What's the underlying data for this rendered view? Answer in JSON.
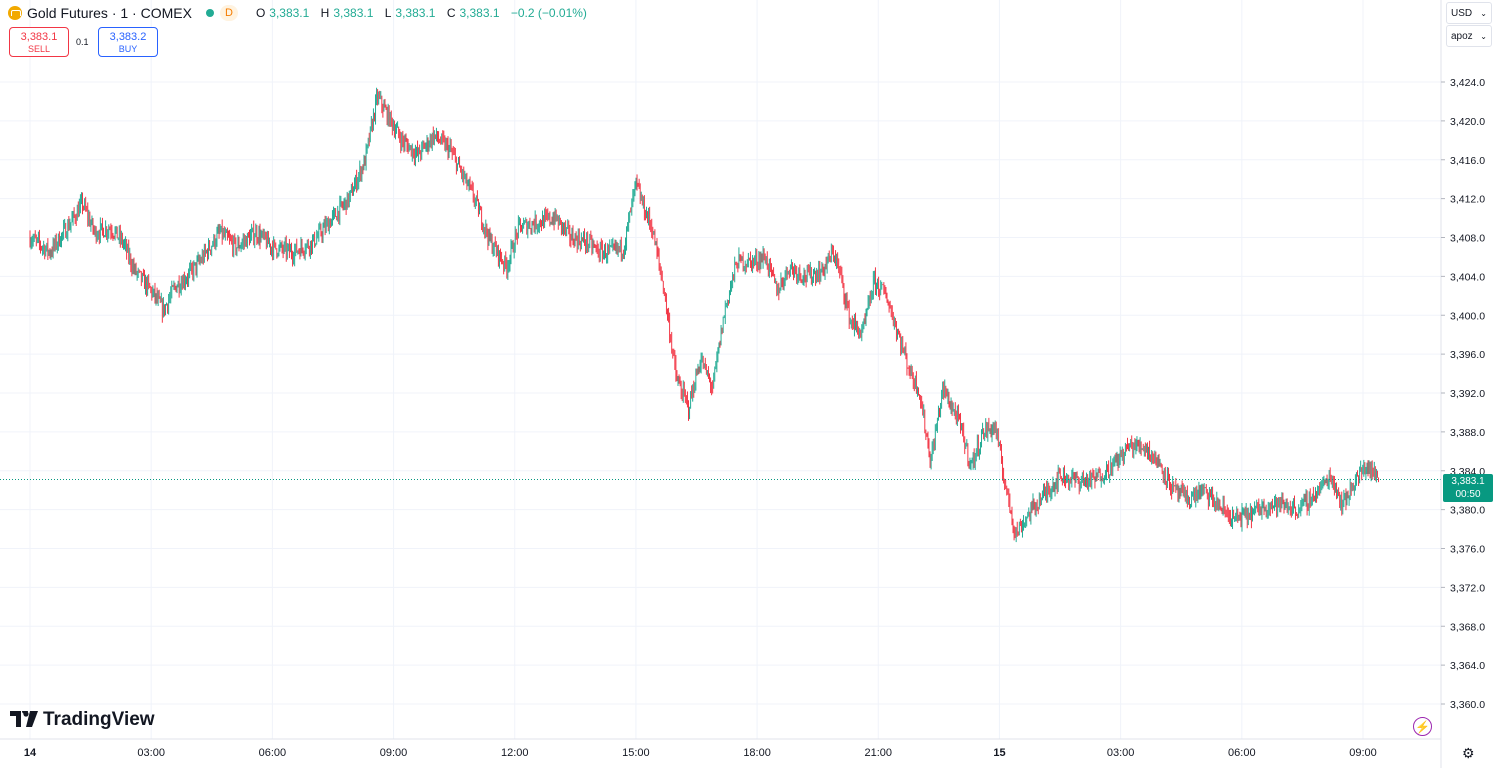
{
  "header": {
    "symbol_title": "Gold Futures · 1 · COMEX",
    "market_status_badge": "D",
    "ohlc": {
      "o_label": "O",
      "o_value": "3,383.1",
      "h_label": "H",
      "h_value": "3,383.1",
      "l_label": "L",
      "l_value": "3,383.1",
      "c_label": "C",
      "c_value": "3,383.1",
      "change": "−0.2 (−0.01%)"
    }
  },
  "trading": {
    "sell_price": "3,383.1",
    "sell_label": "SELL",
    "spread": "0.1",
    "buy_price": "3,383.2",
    "buy_label": "BUY"
  },
  "toolbar": {
    "currency": "USD",
    "scale": "apoz"
  },
  "branding": {
    "logo_text": "TradingView",
    "logo_mark": "TV"
  },
  "price_tag": {
    "price": "3,383.1",
    "countdown": "00:50"
  },
  "colors": {
    "up": "#22ab94",
    "down": "#f23645",
    "grid": "#f0f3fa",
    "tag": "#089981"
  },
  "icons": [
    "gold-coin-icon",
    "lightning-icon",
    "gear-icon",
    "chevron-down-icon"
  ],
  "chart_data": {
    "type": "candlestick",
    "interval": "1 minute",
    "last_price": 3383.1,
    "y_ticks": [
      "3,424.0",
      "3,420.0",
      "3,416.0",
      "3,412.0",
      "3,408.0",
      "3,404.0",
      "3,400.0",
      "3,396.0",
      "3,392.0",
      "3,388.0",
      "3,384.0",
      "3,380.0",
      "3,376.0",
      "3,372.0",
      "3,368.0",
      "3,364.0",
      "3,360.0"
    ],
    "y_tick_values": [
      3424,
      3420,
      3416,
      3412,
      3408,
      3404,
      3400,
      3396,
      3392,
      3388,
      3384,
      3380,
      3376,
      3372,
      3368,
      3364,
      3360
    ],
    "ylim": [
      3357,
      3431
    ],
    "x_ticks": [
      "14",
      "03:00",
      "06:00",
      "09:00",
      "12:00",
      "15:00",
      "18:00",
      "21:00",
      "15",
      "03:00",
      "06:00",
      "09:00"
    ],
    "x_tick_hours": [
      0,
      3,
      6,
      9,
      12,
      15,
      18,
      21,
      24,
      27,
      30,
      33
    ],
    "xlim_hours": [
      0,
      35.2
    ],
    "grid": true,
    "price_path": [
      [
        0.0,
        3408.0
      ],
      [
        0.5,
        3406.5
      ],
      [
        1.0,
        3409.5
      ],
      [
        1.3,
        3411.5
      ],
      [
        1.6,
        3408.5
      ],
      [
        2.0,
        3409.0
      ],
      [
        2.3,
        3407.5
      ],
      [
        2.6,
        3404.5
      ],
      [
        3.0,
        3402.5
      ],
      [
        3.3,
        3400.5
      ],
      [
        3.6,
        3403.0
      ],
      [
        3.9,
        3404.0
      ],
      [
        4.2,
        3405.5
      ],
      [
        4.7,
        3408.5
      ],
      [
        5.1,
        3407.0
      ],
      [
        5.6,
        3408.5
      ],
      [
        6.0,
        3407.0
      ],
      [
        6.5,
        3406.5
      ],
      [
        7.0,
        3407.5
      ],
      [
        7.4,
        3409.5
      ],
      [
        7.9,
        3412.0
      ],
      [
        8.3,
        3416.0
      ],
      [
        8.6,
        3422.5
      ],
      [
        8.8,
        3421.0
      ],
      [
        9.2,
        3418.0
      ],
      [
        9.6,
        3416.5
      ],
      [
        10.0,
        3418.5
      ],
      [
        10.4,
        3417.0
      ],
      [
        10.7,
        3414.5
      ],
      [
        11.0,
        3412.0
      ],
      [
        11.4,
        3407.5
      ],
      [
        11.8,
        3405.0
      ],
      [
        12.1,
        3409.0
      ],
      [
        12.5,
        3409.5
      ],
      [
        13.0,
        3410.0
      ],
      [
        13.4,
        3408.0
      ],
      [
        13.8,
        3407.5
      ],
      [
        14.1,
        3406.5
      ],
      [
        14.4,
        3406.5
      ],
      [
        14.7,
        3407.0
      ],
      [
        15.0,
        3413.5
      ],
      [
        15.2,
        3411.0
      ],
      [
        15.4,
        3409.0
      ],
      [
        15.7,
        3402.5
      ],
      [
        16.0,
        3393.5
      ],
      [
        16.3,
        3390.5
      ],
      [
        16.6,
        3395.5
      ],
      [
        16.9,
        3392.5
      ],
      [
        17.2,
        3400.5
      ],
      [
        17.5,
        3405.5
      ],
      [
        17.9,
        3405.5
      ],
      [
        18.2,
        3406.0
      ],
      [
        18.5,
        3402.5
      ],
      [
        18.8,
        3405.0
      ],
      [
        19.2,
        3404.0
      ],
      [
        19.6,
        3404.5
      ],
      [
        19.9,
        3406.5
      ],
      [
        20.1,
        3403.5
      ],
      [
        20.3,
        3399.5
      ],
      [
        20.6,
        3398.0
      ],
      [
        20.9,
        3403.5
      ],
      [
        21.2,
        3402.0
      ],
      [
        21.5,
        3398.0
      ],
      [
        21.8,
        3394.0
      ],
      [
        22.0,
        3392.5
      ],
      [
        22.3,
        3385.0
      ],
      [
        22.6,
        3392.5
      ],
      [
        23.0,
        3389.0
      ],
      [
        23.3,
        3384.5
      ],
      [
        23.6,
        3388.0
      ],
      [
        23.9,
        3388.5
      ],
      [
        24.1,
        3383.5
      ],
      [
        24.4,
        3377.5
      ],
      [
        24.8,
        3380.0
      ],
      [
        25.1,
        3381.5
      ],
      [
        25.5,
        3383.5
      ],
      [
        25.9,
        3383.0
      ],
      [
        26.3,
        3383.0
      ],
      [
        26.8,
        3384.5
      ],
      [
        27.2,
        3386.5
      ],
      [
        27.6,
        3386.5
      ],
      [
        28.0,
        3384.5
      ],
      [
        28.3,
        3382.0
      ],
      [
        28.7,
        3381.0
      ],
      [
        29.0,
        3382.0
      ],
      [
        29.4,
        3380.5
      ],
      [
        29.8,
        3379.0
      ],
      [
        30.2,
        3379.5
      ],
      [
        30.6,
        3380.5
      ],
      [
        31.0,
        3380.5
      ],
      [
        31.4,
        3380.0
      ],
      [
        31.8,
        3381.5
      ],
      [
        32.2,
        3383.5
      ],
      [
        32.5,
        3380.5
      ],
      [
        32.8,
        3383.0
      ],
      [
        33.1,
        3384.5
      ],
      [
        33.4,
        3383.1
      ]
    ]
  }
}
